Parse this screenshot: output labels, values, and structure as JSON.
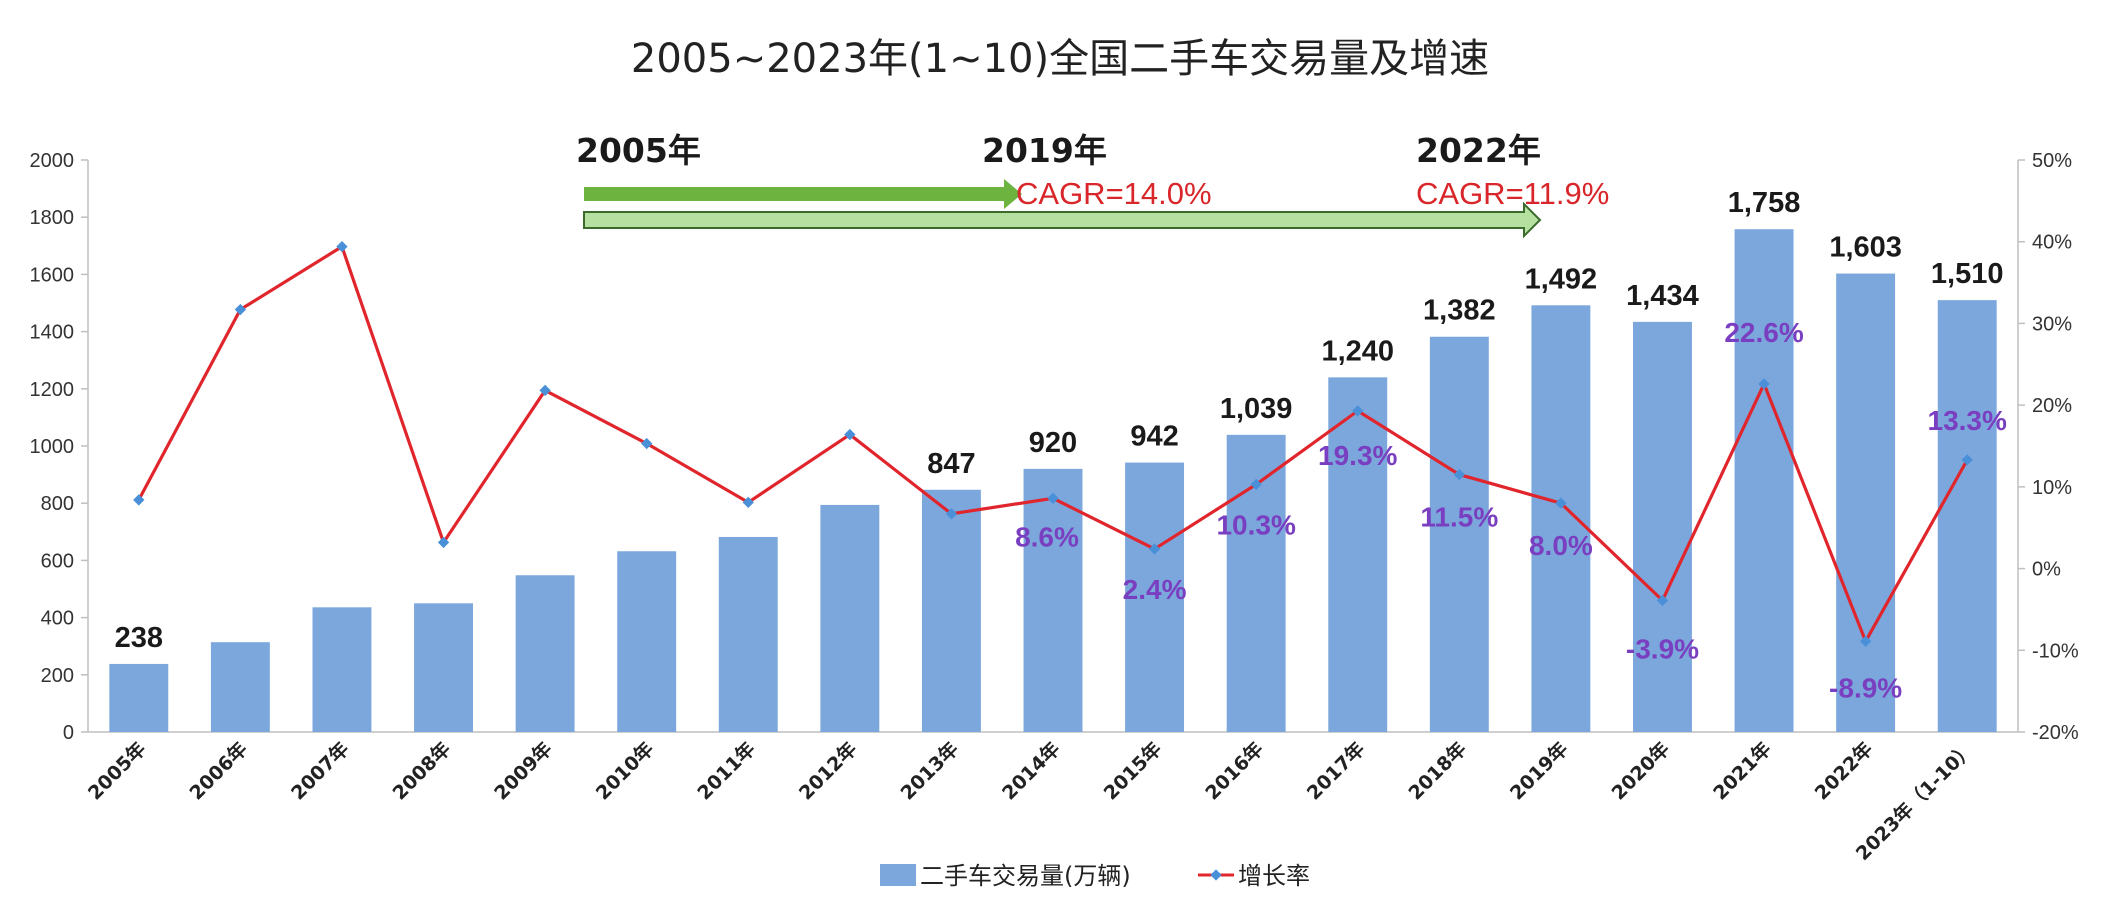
{
  "chart_data": {
    "type": "bar+line",
    "title": "2005~2023年(1~10)全国二手车交易量及增速",
    "categories": [
      "2005年",
      "2006年",
      "2007年",
      "2008年",
      "2009年",
      "2010年",
      "2011年",
      "2012年",
      "2013年",
      "2014年",
      "2015年",
      "2016年",
      "2017年",
      "2018年",
      "2019年",
      "2020年",
      "2021年",
      "2022年",
      "2023年（1-10）"
    ],
    "series": [
      {
        "name": "二手车交易量(万辆)",
        "type": "bar",
        "axis": "left",
        "color": "#7ba7dc",
        "values": [
          238,
          314,
          436,
          450,
          548,
          632,
          682,
          794,
          847,
          920,
          942,
          1039,
          1240,
          1382,
          1492,
          1434,
          1758,
          1603,
          1510
        ],
        "data_labels": [
          "238",
          "",
          "",
          "",
          "",
          "",
          "",
          "",
          "847",
          "920",
          "942",
          "1,039",
          "1,240",
          "1,382",
          "1,492",
          "1,434",
          "1,758",
          "1,603",
          "1,510"
        ]
      },
      {
        "name": "增长率",
        "type": "line",
        "axis": "right",
        "color": "#e0262c",
        "marker_color": "#4a90d9",
        "values": [
          8.4,
          31.7,
          39.4,
          3.2,
          21.8,
          15.3,
          8.1,
          16.4,
          6.7,
          8.6,
          2.4,
          10.3,
          19.3,
          11.5,
          8.0,
          -3.9,
          22.6,
          -8.9,
          13.3
        ],
        "data_labels": [
          "",
          "",
          "",
          "",
          "",
          "",
          "",
          "",
          "",
          "8.6%",
          "2.4%",
          "10.3%",
          "19.3%",
          "11.5%",
          "8.0%",
          "-3.9%",
          "22.6%",
          "-8.9%",
          "13.3%"
        ]
      }
    ],
    "y_left": {
      "ylim": [
        0,
        2000
      ],
      "ticks": [
        "0",
        "200",
        "400",
        "600",
        "800",
        "1000",
        "1200",
        "1400",
        "1600",
        "1800",
        "2000"
      ]
    },
    "y_right": {
      "ylim": [
        -20,
        50
      ],
      "ticks": [
        "-20%",
        "-10%",
        "0%",
        "10%",
        "20%",
        "30%",
        "40%",
        "50%"
      ]
    },
    "annotations": {
      "start_label": "2005年",
      "mid_label": "2019年",
      "end_label": "2022年",
      "cagr_1": "CAGR=14.0%",
      "cagr_2": "CAGR=11.9%"
    },
    "legend": {
      "placement": "bottom-center"
    },
    "grid": false
  }
}
